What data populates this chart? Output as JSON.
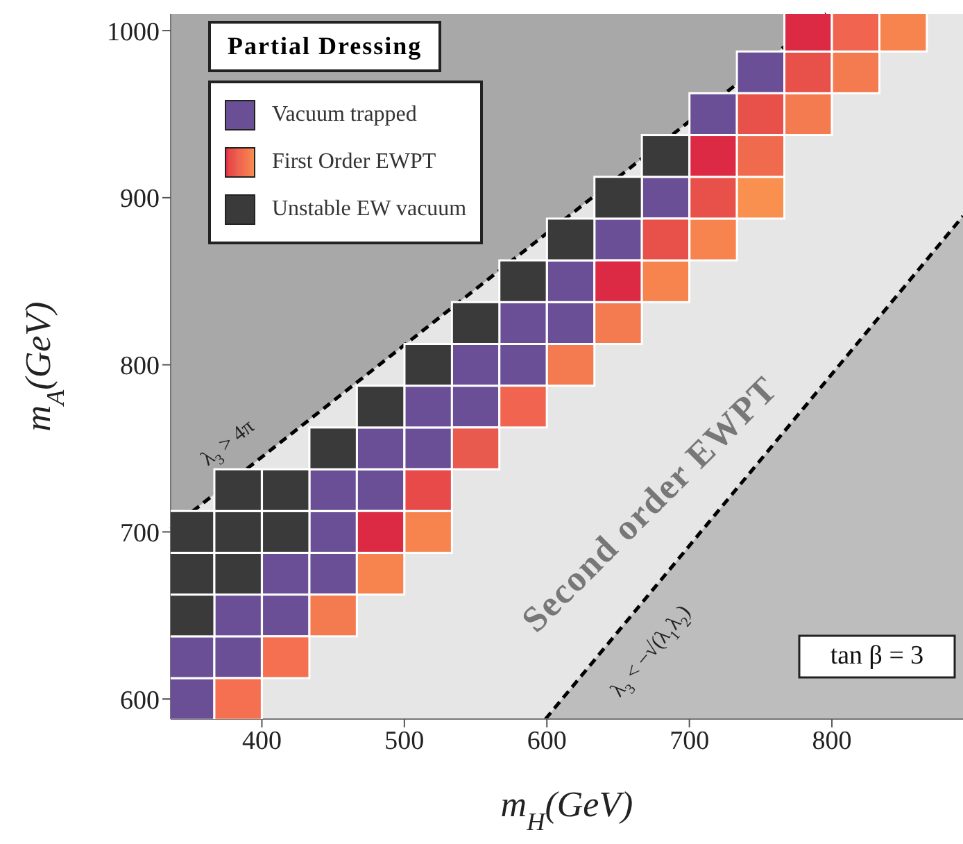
{
  "chart_data": {
    "type": "scatter",
    "xlabel": "m$_{H}$(GeV)",
    "ylabel": "m$_{A}$(GeV)",
    "legend_title": "Partial Dressing",
    "legend": "top left",
    "marker": "square",
    "xlim": [
      336,
      892
    ],
    "ylim": [
      588,
      1010
    ],
    "xticks": [
      400,
      500,
      600,
      700,
      800
    ],
    "yticks": [
      600,
      700,
      800,
      900,
      1000
    ],
    "series": [
      {
        "name": "Vacuum trapped",
        "color": "#6a4f96",
        "x": [
          350,
          350,
          383.3,
          383.3,
          416.7,
          416.7,
          450,
          450,
          450,
          483.3,
          483.3,
          516.7,
          516.7,
          550,
          550,
          583.3,
          583.3,
          616.7,
          616.7,
          650,
          683.3,
          716.7,
          750
        ],
        "values": [
          600,
          625,
          625,
          650,
          650,
          675,
          675,
          700,
          725,
          725,
          750,
          750,
          775,
          775,
          800,
          800,
          825,
          825,
          850,
          875,
          900,
          950,
          975
        ]
      },
      {
        "name": "First Order EWPT",
        "x": [
          383.3,
          416.7,
          450,
          483.3,
          483.3,
          516.7,
          516.7,
          550,
          583.3,
          616.7,
          650,
          650,
          683.3,
          683.3,
          716.7,
          716.7,
          750,
          716.7,
          750,
          750,
          783.3,
          783.3,
          816.7,
          783.3,
          816.7,
          850
        ],
        "values": [
          600,
          625,
          650,
          675,
          700,
          700,
          725,
          750,
          775,
          800,
          825,
          850,
          850,
          875,
          875,
          900,
          900,
          925,
          925,
          950,
          950,
          975,
          975,
          1000,
          1000,
          1000
        ],
        "colors": [
          "#f47050",
          "#f47050",
          "#f47a50",
          "#f7834f",
          "#dc2a44",
          "#f7834f",
          "#e84a4a",
          "#e85a4e",
          "#f06450",
          "#f47a50",
          "#f47a50",
          "#dc2a44",
          "#f7834f",
          "#e8504a",
          "#f7834f",
          "#e8504a",
          "#f9904f",
          "#dc2a44",
          "#f06a4e",
          "#e8504a",
          "#f47a50",
          "#e8504a",
          "#f47a50",
          "#dc2a44",
          "#f06450",
          "#f7834f"
        ]
      },
      {
        "name": "Unstable EW vacuum",
        "color": "#3a3a3a",
        "x": [
          350,
          350,
          383.3,
          350,
          383.3,
          416.7,
          383.3,
          416.7,
          450,
          483.3,
          516.7,
          550,
          583.3,
          616.7,
          650,
          683.3
        ],
        "values": [
          650,
          675,
          675,
          700,
          700,
          700,
          725,
          725,
          750,
          775,
          800,
          825,
          850,
          875,
          900,
          925
        ]
      },
      {
        "type": "line",
        "color": "#000000",
        "line_style": "dashed",
        "marker": "none",
        "x": [
          336,
          796
        ],
        "values": [
          702,
          1010
        ]
      },
      {
        "type": "line",
        "color": "#000000",
        "line_style": "dashed",
        "marker": "none",
        "x": [
          599,
          892
        ],
        "values": [
          588,
          889
        ]
      }
    ],
    "annotations": [
      "λ$_{3}$ > 4π",
      "λ$_{3}$ < −√(λ$_{1}$λ$_{2}$)",
      "Second order EWPT",
      "tan β = 3"
    ]
  }
}
